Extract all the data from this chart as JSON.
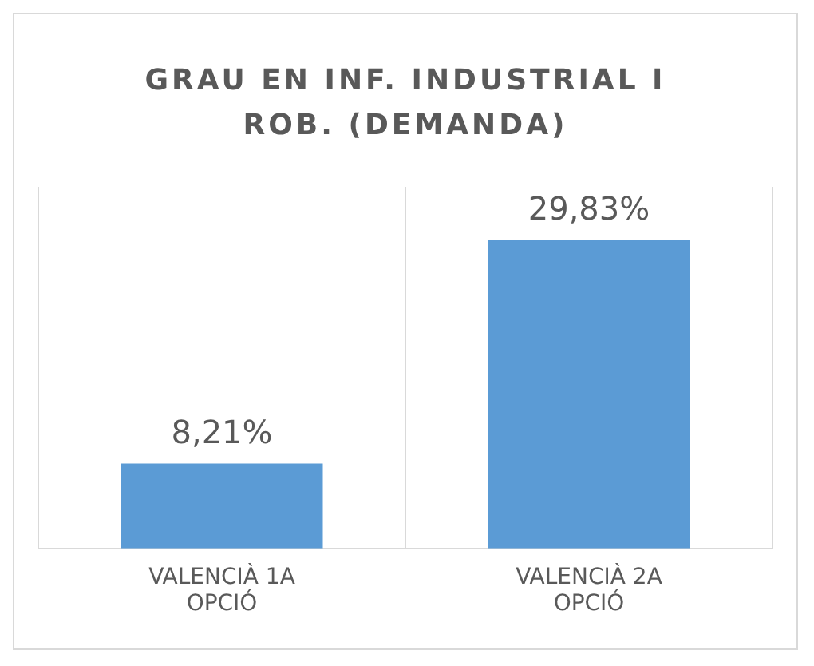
{
  "chart_data": {
    "type": "bar",
    "title": "GRAU EN INF. INDUSTRIAL I ROB. (DEMANDA)",
    "categories": [
      "VALENCIÀ 1A OPCIÓ",
      "VALENCIÀ 2A OPCIÓ"
    ],
    "values": [
      8.21,
      29.83
    ],
    "value_labels": [
      "8,21%",
      "29,83%"
    ],
    "color": "#5b9bd5",
    "grid": "x",
    "tick_labels": "x",
    "legend": false
  }
}
